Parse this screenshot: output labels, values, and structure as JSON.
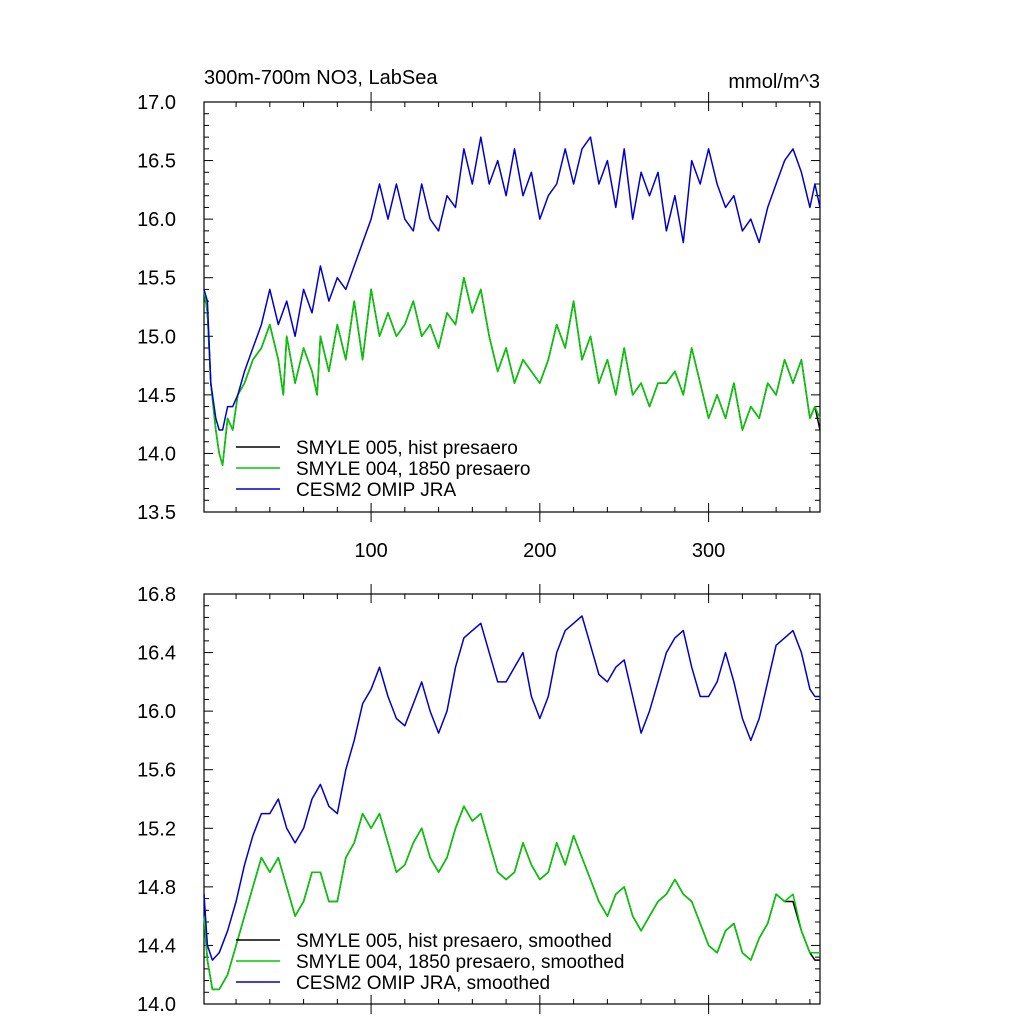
{
  "chart_data": [
    {
      "type": "line",
      "title": "300m-700m NO3, LabSea",
      "units": "mmol/m^3",
      "xlim": [
        1,
        366
      ],
      "ylim": [
        13.5,
        17.0
      ],
      "yticks": [
        13.5,
        14.0,
        14.5,
        15.0,
        15.5,
        16.0,
        16.5,
        17.0
      ],
      "ytick_labels": [
        "13.5",
        "14.0",
        "14.5",
        "15.0",
        "15.5",
        "16.0",
        "16.5",
        "17.0"
      ],
      "xticks": [
        100,
        200,
        300
      ],
      "xtick_labels": [
        "100",
        "200",
        "300"
      ],
      "legend_position": "lower-left",
      "series": [
        {
          "name": "SMYLE 005, hist presaero",
          "color": "#000000",
          "x": [
            1,
            3,
            5,
            8,
            10,
            12,
            15,
            18,
            21,
            25,
            30,
            35,
            40,
            45,
            48,
            50,
            55,
            60,
            65,
            68,
            70,
            75,
            80,
            85,
            90,
            95,
            100,
            105,
            110,
            115,
            120,
            125,
            130,
            135,
            140,
            145,
            150,
            155,
            160,
            165,
            170,
            175,
            180,
            185,
            190,
            195,
            200,
            205,
            210,
            215,
            220,
            225,
            230,
            235,
            240,
            245,
            250,
            255,
            260,
            265,
            270,
            275,
            280,
            285,
            290,
            295,
            300,
            305,
            310,
            315,
            320,
            325,
            330,
            335,
            340,
            345,
            350,
            355,
            360,
            363,
            366
          ],
          "values": [
            15.4,
            15.2,
            14.6,
            14.2,
            14.0,
            13.9,
            14.3,
            14.2,
            14.5,
            14.6,
            14.8,
            14.9,
            15.1,
            14.8,
            14.5,
            15.0,
            14.6,
            14.9,
            14.7,
            14.5,
            15.0,
            14.7,
            15.1,
            14.8,
            15.3,
            14.8,
            15.4,
            15.0,
            15.2,
            15.0,
            15.1,
            15.3,
            15.0,
            15.1,
            14.9,
            15.2,
            15.1,
            15.5,
            15.2,
            15.4,
            15.0,
            14.7,
            14.9,
            14.6,
            14.8,
            14.7,
            14.6,
            14.8,
            15.1,
            14.9,
            15.3,
            14.8,
            15.0,
            14.6,
            14.8,
            14.5,
            14.9,
            14.5,
            14.6,
            14.4,
            14.6,
            14.6,
            14.7,
            14.5,
            14.9,
            14.6,
            14.3,
            14.5,
            14.3,
            14.6,
            14.2,
            14.4,
            14.3,
            14.6,
            14.5,
            14.8,
            14.6,
            14.8,
            14.3,
            14.4,
            14.2
          ]
        },
        {
          "name": "SMYLE 004, 1850 presaero",
          "color": "#00cc00",
          "x": [
            1,
            3,
            5,
            8,
            10,
            12,
            15,
            18,
            21,
            25,
            30,
            35,
            40,
            45,
            48,
            50,
            55,
            60,
            65,
            68,
            70,
            75,
            80,
            85,
            90,
            95,
            100,
            105,
            110,
            115,
            120,
            125,
            130,
            135,
            140,
            145,
            150,
            155,
            160,
            165,
            170,
            175,
            180,
            185,
            190,
            195,
            200,
            205,
            210,
            215,
            220,
            225,
            230,
            235,
            240,
            245,
            250,
            255,
            260,
            265,
            270,
            275,
            280,
            285,
            290,
            295,
            300,
            305,
            310,
            315,
            320,
            325,
            330,
            335,
            340,
            345,
            350,
            355,
            360,
            363,
            366
          ],
          "values": [
            15.4,
            15.2,
            14.6,
            14.2,
            14.0,
            13.9,
            14.3,
            14.2,
            14.5,
            14.6,
            14.8,
            14.9,
            15.1,
            14.8,
            14.5,
            15.0,
            14.6,
            14.9,
            14.7,
            14.5,
            15.0,
            14.7,
            15.1,
            14.8,
            15.3,
            14.8,
            15.4,
            15.0,
            15.2,
            15.0,
            15.1,
            15.3,
            15.0,
            15.1,
            14.9,
            15.2,
            15.1,
            15.5,
            15.2,
            15.4,
            15.0,
            14.7,
            14.9,
            14.6,
            14.8,
            14.7,
            14.6,
            14.8,
            15.1,
            14.9,
            15.3,
            14.8,
            15.0,
            14.6,
            14.8,
            14.5,
            14.9,
            14.5,
            14.6,
            14.4,
            14.6,
            14.6,
            14.7,
            14.5,
            14.9,
            14.6,
            14.3,
            14.5,
            14.3,
            14.6,
            14.2,
            14.4,
            14.3,
            14.6,
            14.5,
            14.8,
            14.6,
            14.8,
            14.3,
            14.4,
            14.3
          ]
        },
        {
          "name": "CESM2 OMIP JRA",
          "color": "#0000cc",
          "x": [
            1,
            3,
            5,
            8,
            10,
            12,
            15,
            18,
            21,
            25,
            30,
            35,
            40,
            45,
            50,
            55,
            60,
            65,
            70,
            75,
            80,
            85,
            90,
            95,
            100,
            105,
            110,
            115,
            120,
            125,
            130,
            135,
            140,
            145,
            150,
            155,
            160,
            165,
            170,
            175,
            180,
            185,
            190,
            195,
            200,
            205,
            210,
            215,
            220,
            225,
            230,
            235,
            240,
            245,
            250,
            255,
            260,
            265,
            270,
            275,
            280,
            285,
            290,
            295,
            300,
            305,
            310,
            315,
            320,
            325,
            330,
            335,
            340,
            345,
            350,
            355,
            360,
            363,
            366
          ],
          "values": [
            15.4,
            15.3,
            14.6,
            14.3,
            14.2,
            14.2,
            14.4,
            14.4,
            14.5,
            14.7,
            14.9,
            15.1,
            15.4,
            15.1,
            15.3,
            15.0,
            15.4,
            15.2,
            15.6,
            15.3,
            15.5,
            15.4,
            15.6,
            15.8,
            16.0,
            16.3,
            16.0,
            16.3,
            16.0,
            15.9,
            16.3,
            16.0,
            15.9,
            16.2,
            16.1,
            16.6,
            16.3,
            16.7,
            16.3,
            16.5,
            16.2,
            16.6,
            16.2,
            16.4,
            16.0,
            16.2,
            16.3,
            16.6,
            16.3,
            16.6,
            16.7,
            16.3,
            16.5,
            16.1,
            16.6,
            16.0,
            16.4,
            16.2,
            16.4,
            15.9,
            16.2,
            15.8,
            16.5,
            16.3,
            16.6,
            16.3,
            16.1,
            16.2,
            15.9,
            16.0,
            15.8,
            16.1,
            16.3,
            16.5,
            16.6,
            16.4,
            16.1,
            16.3,
            16.1
          ]
        }
      ]
    },
    {
      "type": "line",
      "title": "",
      "xlim": [
        1,
        366
      ],
      "ylim": [
        14.0,
        16.8
      ],
      "yticks": [
        14.0,
        14.4,
        14.8,
        15.2,
        15.6,
        16.0,
        16.4,
        16.8
      ],
      "ytick_labels": [
        "14.0",
        "14.4",
        "14.8",
        "15.2",
        "15.6",
        "16.0",
        "16.4",
        "16.8"
      ],
      "xticks": [
        100,
        200,
        300
      ],
      "legend_position": "lower-left",
      "series": [
        {
          "name": "SMYLE 005, hist presaero, smoothed",
          "color": "#000000",
          "x": [
            1,
            3,
            6,
            10,
            15,
            20,
            25,
            30,
            35,
            40,
            45,
            50,
            55,
            60,
            65,
            70,
            75,
            80,
            85,
            90,
            95,
            100,
            105,
            110,
            115,
            120,
            125,
            130,
            135,
            140,
            145,
            150,
            155,
            160,
            165,
            170,
            175,
            180,
            185,
            190,
            195,
            200,
            205,
            210,
            215,
            220,
            225,
            230,
            235,
            240,
            245,
            250,
            255,
            260,
            265,
            270,
            275,
            280,
            285,
            290,
            295,
            300,
            305,
            310,
            315,
            320,
            325,
            330,
            335,
            340,
            345,
            350,
            355,
            360,
            363,
            366
          ],
          "values": [
            14.6,
            14.3,
            14.1,
            14.1,
            14.2,
            14.4,
            14.6,
            14.8,
            15.0,
            14.9,
            15.0,
            14.8,
            14.6,
            14.7,
            14.9,
            14.9,
            14.7,
            14.7,
            15.0,
            15.1,
            15.3,
            15.2,
            15.3,
            15.1,
            14.9,
            14.95,
            15.1,
            15.2,
            15.0,
            14.9,
            15.0,
            15.2,
            15.35,
            15.25,
            15.3,
            15.1,
            14.9,
            14.85,
            14.9,
            15.1,
            14.95,
            14.85,
            14.9,
            15.1,
            14.95,
            15.15,
            15.0,
            14.85,
            14.7,
            14.6,
            14.75,
            14.8,
            14.6,
            14.5,
            14.6,
            14.7,
            14.75,
            14.85,
            14.75,
            14.7,
            14.55,
            14.4,
            14.35,
            14.5,
            14.55,
            14.35,
            14.3,
            14.45,
            14.55,
            14.75,
            14.7,
            14.7,
            14.5,
            14.35,
            14.3,
            14.3
          ]
        },
        {
          "name": "SMYLE 004, 1850 presaero, smoothed",
          "color": "#00cc00",
          "x": [
            1,
            3,
            6,
            10,
            15,
            20,
            25,
            30,
            35,
            40,
            45,
            50,
            55,
            60,
            65,
            70,
            75,
            80,
            85,
            90,
            95,
            100,
            105,
            110,
            115,
            120,
            125,
            130,
            135,
            140,
            145,
            150,
            155,
            160,
            165,
            170,
            175,
            180,
            185,
            190,
            195,
            200,
            205,
            210,
            215,
            220,
            225,
            230,
            235,
            240,
            245,
            250,
            255,
            260,
            265,
            270,
            275,
            280,
            285,
            290,
            295,
            300,
            305,
            310,
            315,
            320,
            325,
            330,
            335,
            340,
            345,
            350,
            355,
            360,
            363,
            366
          ],
          "values": [
            14.6,
            14.3,
            14.1,
            14.1,
            14.2,
            14.4,
            14.6,
            14.8,
            15.0,
            14.9,
            15.0,
            14.8,
            14.6,
            14.7,
            14.9,
            14.9,
            14.7,
            14.7,
            15.0,
            15.1,
            15.3,
            15.2,
            15.3,
            15.1,
            14.9,
            14.95,
            15.1,
            15.2,
            15.0,
            14.9,
            15.0,
            15.2,
            15.35,
            15.25,
            15.3,
            15.1,
            14.9,
            14.85,
            14.9,
            15.1,
            14.95,
            14.85,
            14.9,
            15.1,
            14.95,
            15.15,
            15.0,
            14.85,
            14.7,
            14.6,
            14.75,
            14.8,
            14.6,
            14.5,
            14.6,
            14.7,
            14.75,
            14.85,
            14.75,
            14.7,
            14.55,
            14.4,
            14.35,
            14.5,
            14.55,
            14.35,
            14.3,
            14.45,
            14.55,
            14.75,
            14.7,
            14.75,
            14.5,
            14.35,
            14.35,
            14.35
          ]
        },
        {
          "name": "CESM2 OMIP JRA, smoothed",
          "color": "#0000cc",
          "x": [
            1,
            3,
            6,
            10,
            15,
            20,
            25,
            30,
            35,
            40,
            45,
            50,
            55,
            60,
            65,
            70,
            75,
            80,
            85,
            90,
            95,
            100,
            105,
            110,
            115,
            120,
            125,
            130,
            135,
            140,
            145,
            150,
            155,
            160,
            165,
            170,
            175,
            180,
            185,
            190,
            195,
            200,
            205,
            210,
            215,
            220,
            225,
            230,
            235,
            240,
            245,
            250,
            255,
            260,
            265,
            270,
            275,
            280,
            285,
            290,
            295,
            300,
            305,
            310,
            315,
            320,
            325,
            330,
            335,
            340,
            345,
            350,
            355,
            360,
            363,
            366
          ],
          "values": [
            14.75,
            14.4,
            14.3,
            14.35,
            14.5,
            14.7,
            14.95,
            15.15,
            15.3,
            15.3,
            15.4,
            15.2,
            15.1,
            15.2,
            15.4,
            15.5,
            15.35,
            15.3,
            15.6,
            15.8,
            16.05,
            16.15,
            16.3,
            16.1,
            15.95,
            15.9,
            16.05,
            16.2,
            16.0,
            15.85,
            16.0,
            16.3,
            16.5,
            16.55,
            16.6,
            16.4,
            16.2,
            16.2,
            16.3,
            16.4,
            16.1,
            15.95,
            16.1,
            16.4,
            16.55,
            16.6,
            16.65,
            16.45,
            16.25,
            16.2,
            16.3,
            16.35,
            16.1,
            15.85,
            16.0,
            16.2,
            16.4,
            16.5,
            16.55,
            16.3,
            16.1,
            16.1,
            16.2,
            16.4,
            16.2,
            15.95,
            15.8,
            15.95,
            16.2,
            16.45,
            16.5,
            16.55,
            16.4,
            16.15,
            16.1,
            16.1
          ]
        }
      ]
    }
  ]
}
